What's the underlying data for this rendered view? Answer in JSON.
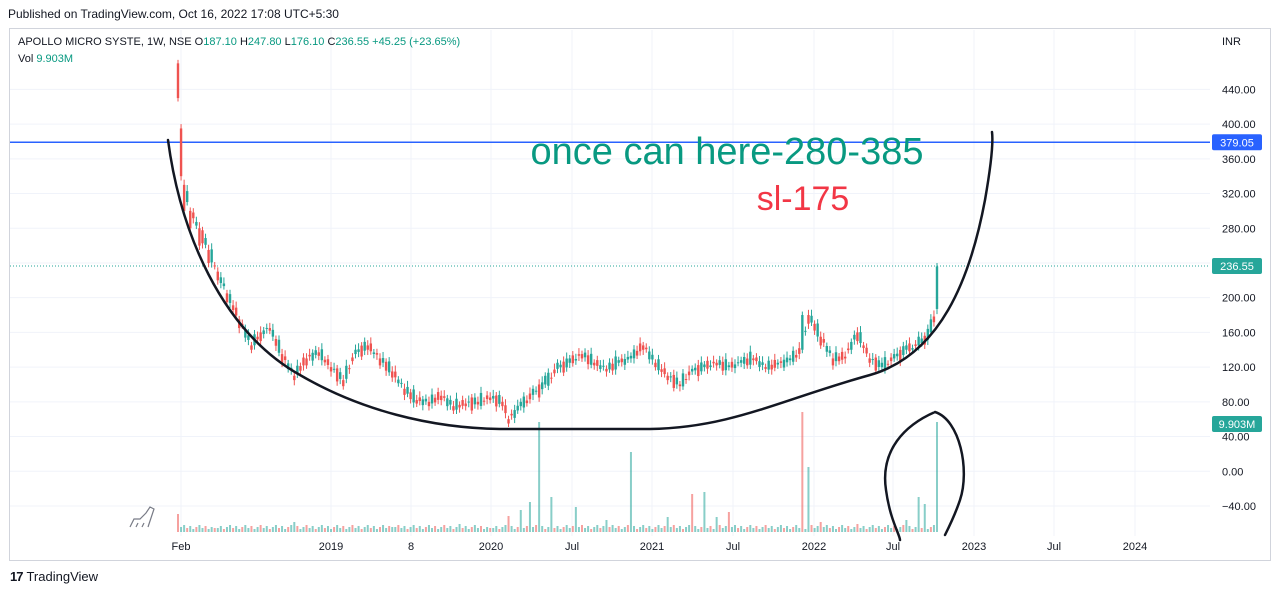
{
  "header": {
    "published": "Published on TradingView.com, Oct 16, 2022 17:08 UTC+5:30"
  },
  "legend": {
    "symbol": "APOLLO MICRO SYSTE, 1W, NSE",
    "open_label": "O",
    "open": "187.10",
    "high_label": "H",
    "high": "247.80",
    "low_label": "L",
    "low": "176.10",
    "close_label": "C",
    "close": "236.55",
    "change": "+45.25 (+23.65%)",
    "vol_label": "Vol",
    "vol": "9.903M"
  },
  "footer": {
    "logo": "17",
    "brand": "TradingView"
  },
  "colors": {
    "up": "#26a69a",
    "down": "#ef5350",
    "hline": "#2962ff",
    "text_green": "#089981",
    "text_red": "#f23645",
    "drawing": "#131722"
  },
  "chart_data": {
    "type": "candlestick",
    "currency_label": "INR",
    "ylim": [
      -70,
      490
    ],
    "y_ticks": [
      440,
      400,
      360,
      320,
      280,
      240,
      200,
      160,
      120,
      80,
      40,
      0,
      -40
    ],
    "y_tick_labels": [
      "440.00",
      "400.00",
      "360.00",
      "320.00",
      "280.00",
      "240.00",
      "200.00",
      "160.00",
      "120.00",
      "80.00",
      "40.00",
      "0.00",
      "−40.00"
    ],
    "x_tick_labels": [
      "Feb",
      "2019",
      "8",
      "2020",
      "Jul",
      "2021",
      "Jul",
      "2022",
      "Jul",
      "2023",
      "Jul",
      "2024"
    ],
    "horizontal_line": {
      "value": 379.05,
      "label": "379.05"
    },
    "last_price": {
      "value": 236.55,
      "label": "236.55"
    },
    "volume_badge": {
      "label": "9.903M"
    },
    "price_path": [
      [
        0,
        470,
        430
      ],
      [
        1,
        395,
        340
      ],
      [
        2,
        330,
        300
      ],
      [
        4,
        300,
        280
      ],
      [
        7,
        280,
        260
      ],
      [
        10,
        255,
        240
      ],
      [
        13,
        230,
        220
      ],
      [
        16,
        205,
        195
      ],
      [
        20,
        175,
        165
      ],
      [
        24,
        145,
        140
      ],
      [
        27,
        160,
        150
      ],
      [
        30,
        165,
        162
      ],
      [
        34,
        135,
        125
      ],
      [
        38,
        110,
        105
      ],
      [
        42,
        130,
        122
      ],
      [
        46,
        137,
        133
      ],
      [
        50,
        120,
        115
      ],
      [
        54,
        105,
        98
      ],
      [
        58,
        135,
        140
      ],
      [
        62,
        145,
        140
      ],
      [
        66,
        130,
        122
      ],
      [
        70,
        115,
        108
      ],
      [
        74,
        95,
        88
      ],
      [
        78,
        82,
        78
      ],
      [
        82,
        80,
        75
      ],
      [
        86,
        87,
        82
      ],
      [
        90,
        75,
        70
      ],
      [
        94,
        78,
        75
      ],
      [
        98,
        80,
        77
      ],
      [
        102,
        85,
        82
      ],
      [
        106,
        80,
        75
      ],
      [
        108,
        60,
        55
      ],
      [
        112,
        75,
        80
      ],
      [
        116,
        88,
        95
      ],
      [
        120,
        100,
        110
      ],
      [
        124,
        118,
        125
      ],
      [
        128,
        125,
        130
      ],
      [
        132,
        135,
        130
      ],
      [
        136,
        125,
        122
      ],
      [
        140,
        118,
        115
      ],
      [
        144,
        125,
        128
      ],
      [
        148,
        130,
        133
      ],
      [
        152,
        145,
        140
      ],
      [
        156,
        125,
        120
      ],
      [
        160,
        110,
        105
      ],
      [
        164,
        100,
        98
      ],
      [
        168,
        115,
        118
      ],
      [
        172,
        120,
        123
      ],
      [
        176,
        125,
        122
      ],
      [
        180,
        120,
        122
      ],
      [
        184,
        125,
        128
      ],
      [
        188,
        130,
        128
      ],
      [
        192,
        120,
        118
      ],
      [
        196,
        123,
        125
      ],
      [
        200,
        128,
        130
      ],
      [
        204,
        140,
        180
      ],
      [
        206,
        180,
        170
      ],
      [
        210,
        155,
        145
      ],
      [
        214,
        130,
        122
      ],
      [
        218,
        132,
        130
      ],
      [
        222,
        160,
        150
      ],
      [
        226,
        130,
        125
      ],
      [
        230,
        120,
        125
      ],
      [
        234,
        130,
        135
      ],
      [
        238,
        140,
        145
      ],
      [
        242,
        145,
        155
      ],
      [
        246,
        160,
        175
      ],
      [
        248,
        187,
        236
      ]
    ],
    "volume_spikes": [
      [
        0,
        18
      ],
      [
        12,
        4
      ],
      [
        38,
        10
      ],
      [
        70,
        5
      ],
      [
        92,
        8
      ],
      [
        102,
        4
      ],
      [
        108,
        16
      ],
      [
        112,
        22
      ],
      [
        115,
        30
      ],
      [
        118,
        110
      ],
      [
        122,
        35
      ],
      [
        130,
        25
      ],
      [
        140,
        12
      ],
      [
        148,
        80
      ],
      [
        160,
        15
      ],
      [
        168,
        38
      ],
      [
        172,
        40
      ],
      [
        176,
        15
      ],
      [
        180,
        20
      ],
      [
        204,
        120
      ],
      [
        206,
        65
      ],
      [
        210,
        10
      ],
      [
        222,
        8
      ],
      [
        238,
        12
      ],
      [
        242,
        35
      ],
      [
        244,
        28
      ],
      [
        248,
        110
      ]
    ],
    "annotations": [
      {
        "text": "once can here-280-385",
        "color": "#089981"
      },
      {
        "text": "sl-175",
        "color": "#f23645"
      }
    ]
  }
}
